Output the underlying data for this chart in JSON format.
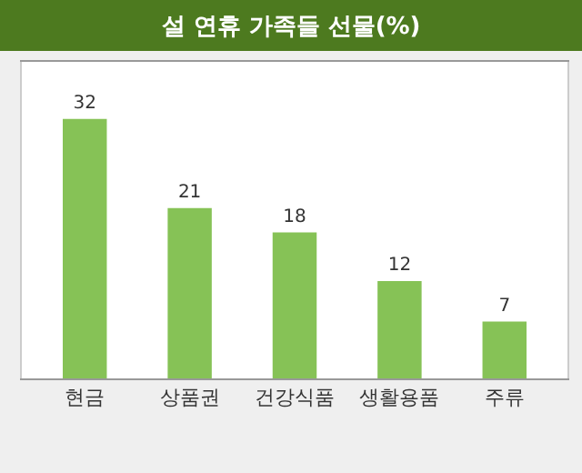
{
  "chart_data": {
    "type": "bar",
    "title": "설 연휴 가족들 선물(%)",
    "categories": [
      "현금",
      "상품권",
      "건강식품",
      "생활용품",
      "주류"
    ],
    "values": [
      32,
      21,
      18,
      12,
      7
    ],
    "color": "#86c256",
    "data_labels": true
  }
}
